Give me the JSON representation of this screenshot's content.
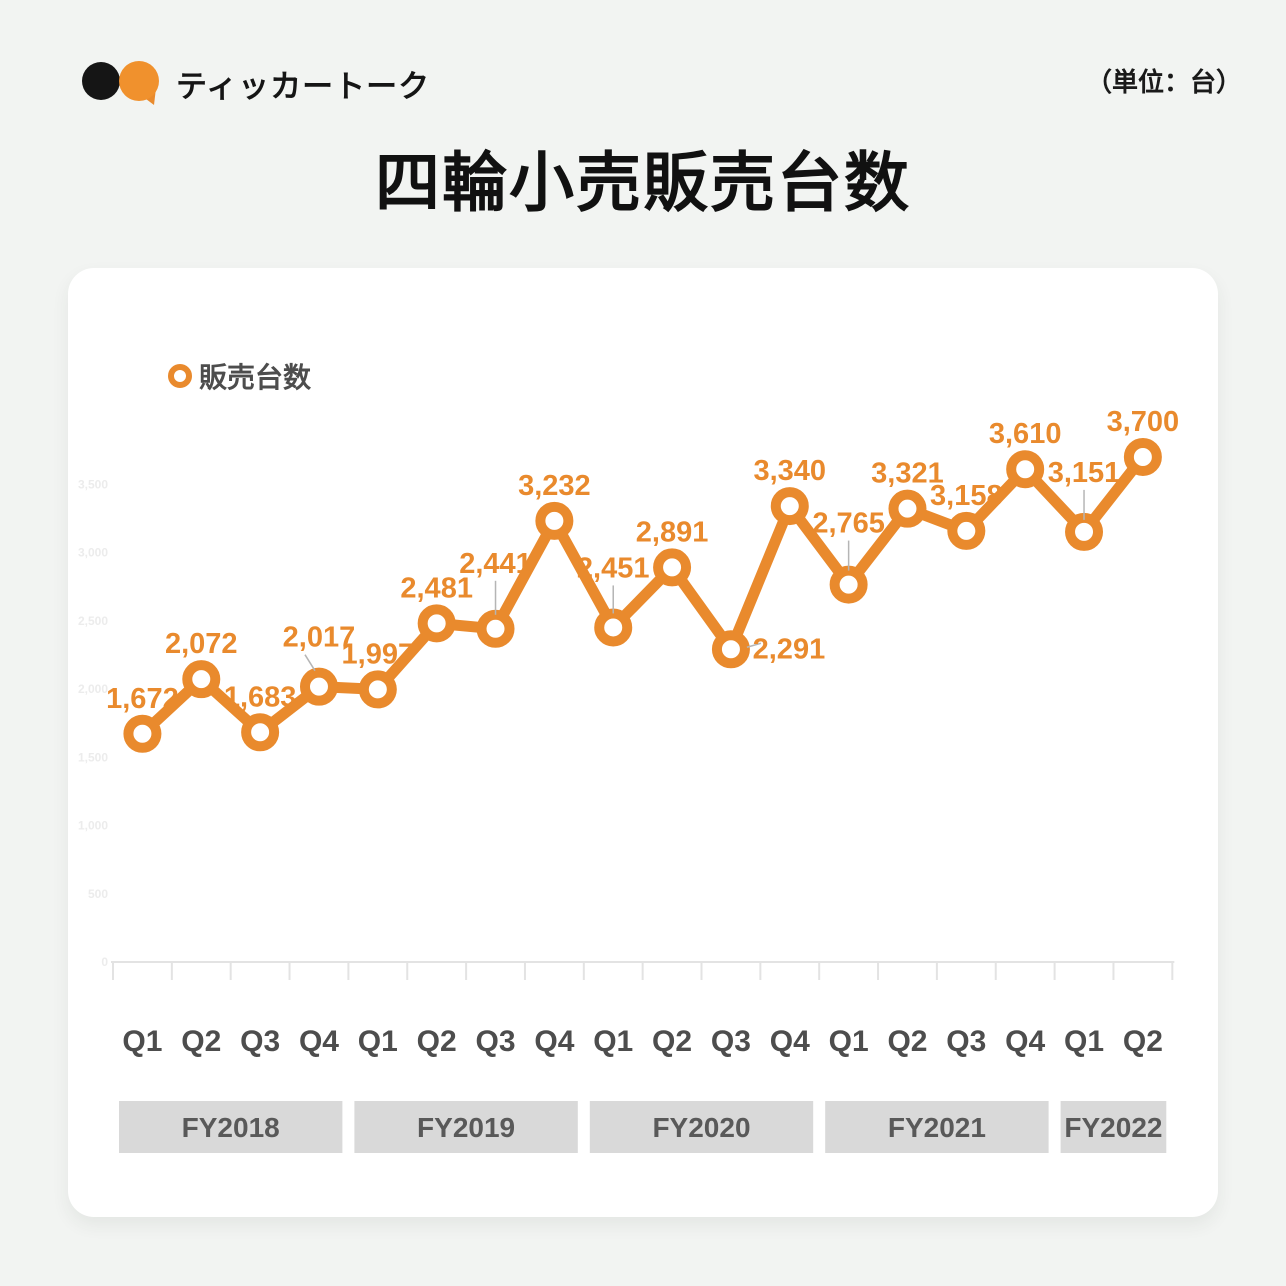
{
  "brand": {
    "name": "ティッカートーク"
  },
  "header": {
    "unit_label": "（単位：台）"
  },
  "title": "四輪小売販売台数",
  "legend": {
    "label": "販売台数"
  },
  "colors": {
    "accent": "#E98A2D",
    "logo_black": "#151515",
    "band_bg": "#D9D9D9",
    "band_text": "#595959",
    "axis": "#E3E3E3",
    "x_label": "#4D4D4D",
    "ytick_label": "#ECECEC",
    "leader_line": "#B5B5B5",
    "page_bg": "#F2F4F2",
    "card_bg": "#FFFFFF"
  },
  "chart_data": {
    "type": "line",
    "title": "四輪小売販売台数",
    "unit": "台",
    "categories": [
      "Q1",
      "Q2",
      "Q3",
      "Q4",
      "Q1",
      "Q2",
      "Q3",
      "Q4",
      "Q1",
      "Q2",
      "Q3",
      "Q4",
      "Q1",
      "Q2",
      "Q3",
      "Q4",
      "Q1",
      "Q2"
    ],
    "fiscal_years": [
      {
        "label": "FY2018",
        "span": 4
      },
      {
        "label": "FY2019",
        "span": 4
      },
      {
        "label": "FY2020",
        "span": 4
      },
      {
        "label": "FY2021",
        "span": 4
      },
      {
        "label": "FY2022",
        "span": 2
      }
    ],
    "series": [
      {
        "name": "販売台数",
        "values": [
          1672,
          2072,
          1683,
          2017,
          1997,
          2481,
          2441,
          3232,
          2451,
          2891,
          2291,
          3340,
          2765,
          3321,
          3158,
          3610,
          3151,
          3700
        ]
      }
    ],
    "data_labels": [
      "1,672",
      "2,072",
      "1,683",
      "2,017",
      "1,997",
      "2,481",
      "2,441",
      "3,232",
      "2,451",
      "2,891",
      "2,291",
      "3,340",
      "2,765",
      "3,321",
      "3,158",
      "3,610",
      "3,151",
      "3,700"
    ],
    "ylim": [
      0,
      4000
    ],
    "ytick_step": 500,
    "ytick_labels": [
      "0",
      "500",
      "1,000",
      "1,500",
      "2,000",
      "2,500",
      "3,000",
      "3,500"
    ],
    "grid": false,
    "legend_position": "top-left"
  }
}
